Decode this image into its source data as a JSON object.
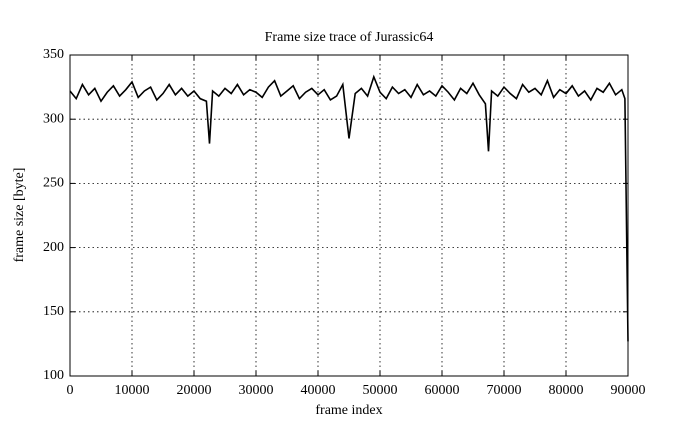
{
  "chart_data": {
    "type": "line",
    "title": "Frame size trace of Jurassic64",
    "x_label": "frame index",
    "y_label": "frame size [byte]",
    "x": [
      0,
      1000,
      2000,
      3000,
      4000,
      5000,
      6000,
      7000,
      8000,
      9000,
      10000,
      11000,
      12000,
      13000,
      14000,
      15000,
      16000,
      17000,
      18000,
      19000,
      20000,
      21000,
      22000,
      22500,
      23000,
      24000,
      25000,
      26000,
      27000,
      28000,
      29000,
      30000,
      31000,
      32000,
      33000,
      34000,
      35000,
      36000,
      37000,
      38000,
      39000,
      40000,
      41000,
      42000,
      43000,
      44000,
      45000,
      46000,
      47000,
      48000,
      49000,
      50000,
      51000,
      52000,
      53000,
      54000,
      55000,
      56000,
      57000,
      58000,
      59000,
      60000,
      61000,
      62000,
      63000,
      64000,
      65000,
      66000,
      67000,
      67500,
      68000,
      69000,
      70000,
      71000,
      72000,
      73000,
      74000,
      75000,
      76000,
      77000,
      78000,
      79000,
      80000,
      81000,
      82000,
      83000,
      84000,
      85000,
      86000,
      87000,
      88000,
      89000,
      89500,
      90000
    ],
    "series": [
      {
        "name": "frame size",
        "color": "#000000",
        "values": [
          322,
          316,
          327,
          319,
          324,
          314,
          321,
          326,
          318,
          323,
          329,
          317,
          322,
          325,
          315,
          320,
          327,
          319,
          324,
          318,
          322,
          316,
          314,
          281,
          322,
          318,
          324,
          320,
          327,
          319,
          323,
          321,
          317,
          325,
          330,
          318,
          322,
          326,
          316,
          321,
          324,
          319,
          323,
          315,
          318,
          327,
          285,
          320,
          324,
          318,
          333,
          321,
          316,
          325,
          320,
          323,
          317,
          327,
          319,
          322,
          318,
          326,
          321,
          315,
          324,
          320,
          328,
          319,
          312,
          275,
          322,
          318,
          325,
          320,
          316,
          327,
          321,
          324,
          319,
          330,
          317,
          323,
          320,
          326,
          318,
          322,
          315,
          324,
          321,
          328,
          319,
          323,
          316,
          127
        ]
      }
    ],
    "xlim": [
      0,
      90000
    ],
    "xticks": [
      0,
      10000,
      20000,
      30000,
      40000,
      50000,
      60000,
      70000,
      80000,
      90000
    ],
    "ylim": [
      100,
      350
    ],
    "yticks": [
      100,
      150,
      200,
      250,
      300,
      350
    ],
    "grid": true
  }
}
